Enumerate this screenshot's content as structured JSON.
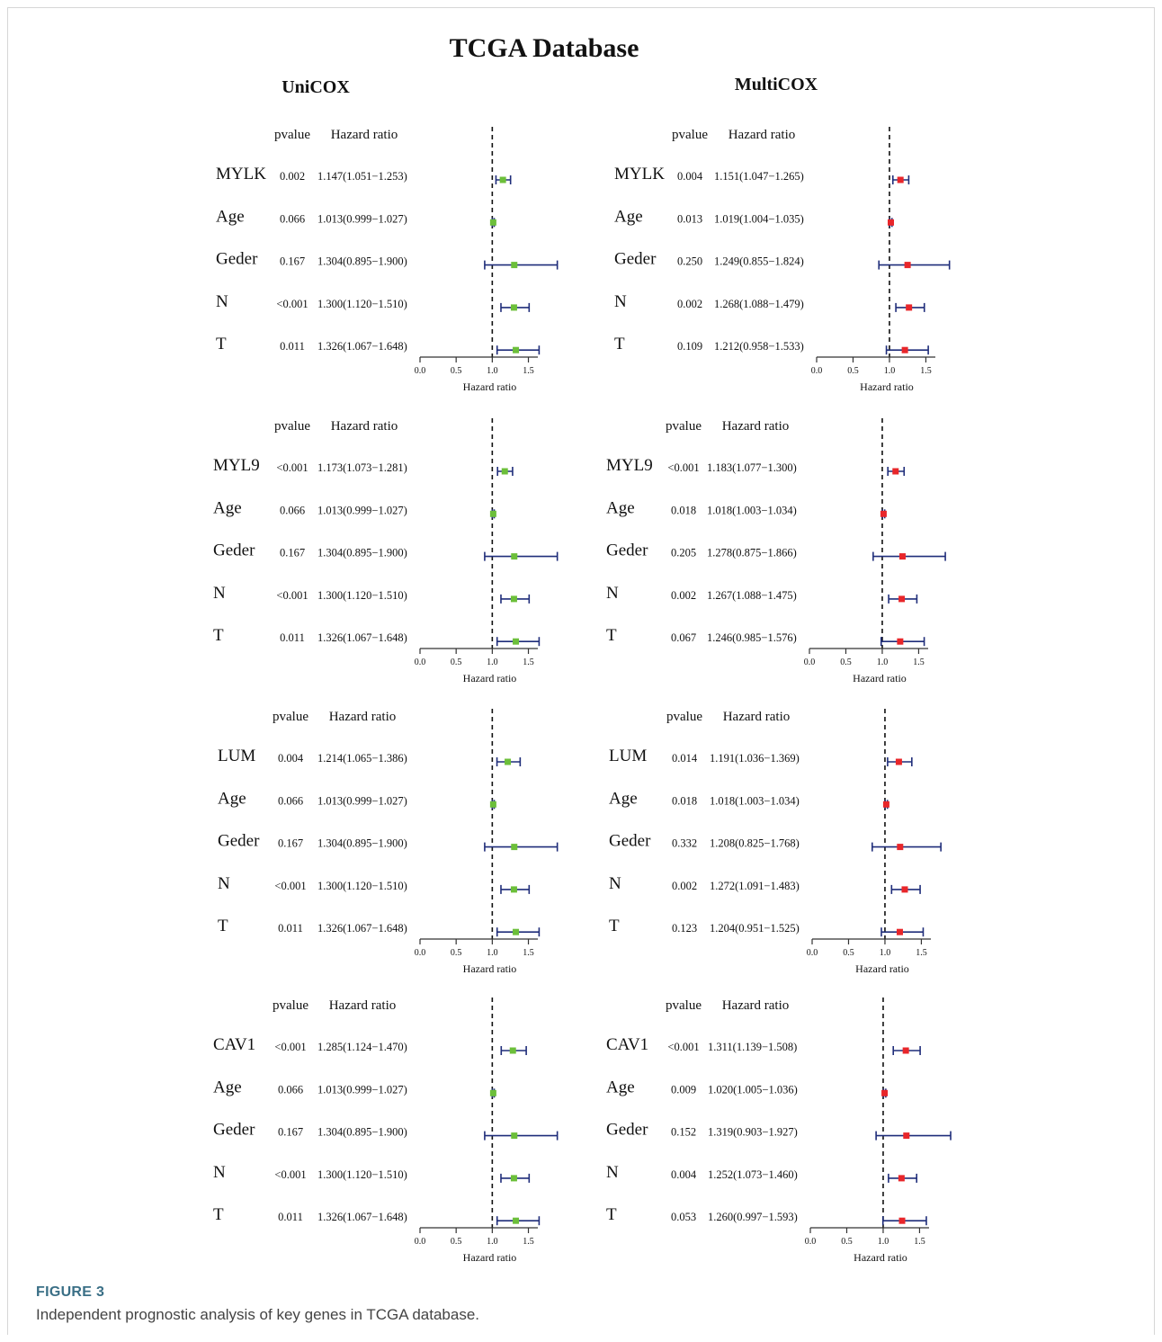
{
  "figure": {
    "label": "FIGURE 3",
    "caption": "Independent prognostic analysis of key genes in TCGA database."
  },
  "colors": {
    "unicox_marker": "#6cbf3a",
    "multicox_marker": "#e8262a",
    "ci_line": "#1f2d7a",
    "axis": "#333333",
    "text": "#111111"
  },
  "chart_data": {
    "type": "forest",
    "title": "TCGA Database",
    "columns": [
      "UniCOX",
      "MultiCOX"
    ],
    "header_pvalue": "pvalue",
    "header_hr": "Hazard ratio",
    "xlabel": "Hazard ratio",
    "xticks": [
      "0.0",
      "0.5",
      "1.0",
      "1.5"
    ],
    "xlim": [
      0,
      1.5
    ],
    "reference_line": 1.0,
    "panels": [
      {
        "column": "UniCOX",
        "rows": [
          {
            "label": "MYLK",
            "pvalue": "0.002",
            "hr_text": "1.147(1.051−1.253)",
            "hr": 1.147,
            "lo": 1.051,
            "hi": 1.253
          },
          {
            "label": "Age",
            "pvalue": "0.066",
            "hr_text": "1.013(0.999−1.027)",
            "hr": 1.013,
            "lo": 0.999,
            "hi": 1.027
          },
          {
            "label": "Geder",
            "pvalue": "0.167",
            "hr_text": "1.304(0.895−1.900)",
            "hr": 1.304,
            "lo": 0.895,
            "hi": 1.9
          },
          {
            "label": "N",
            "pvalue": "<0.001",
            "hr_text": "1.300(1.120−1.510)",
            "hr": 1.3,
            "lo": 1.12,
            "hi": 1.51
          },
          {
            "label": "T",
            "pvalue": "0.011",
            "hr_text": "1.326(1.067−1.648)",
            "hr": 1.326,
            "lo": 1.067,
            "hi": 1.648
          }
        ]
      },
      {
        "column": "MultiCOX",
        "rows": [
          {
            "label": "MYLK",
            "pvalue": "0.004",
            "hr_text": "1.151(1.047−1.265)",
            "hr": 1.151,
            "lo": 1.047,
            "hi": 1.265
          },
          {
            "label": "Age",
            "pvalue": "0.013",
            "hr_text": "1.019(1.004−1.035)",
            "hr": 1.019,
            "lo": 1.004,
            "hi": 1.035
          },
          {
            "label": "Geder",
            "pvalue": "0.250",
            "hr_text": "1.249(0.855−1.824)",
            "hr": 1.249,
            "lo": 0.855,
            "hi": 1.824
          },
          {
            "label": "N",
            "pvalue": "0.002",
            "hr_text": "1.268(1.088−1.479)",
            "hr": 1.268,
            "lo": 1.088,
            "hi": 1.479
          },
          {
            "label": "T",
            "pvalue": "0.109",
            "hr_text": "1.212(0.958−1.533)",
            "hr": 1.212,
            "lo": 0.958,
            "hi": 1.533
          }
        ]
      },
      {
        "column": "UniCOX",
        "rows": [
          {
            "label": "MYL9",
            "pvalue": "<0.001",
            "hr_text": "1.173(1.073−1.281)",
            "hr": 1.173,
            "lo": 1.073,
            "hi": 1.281
          },
          {
            "label": "Age",
            "pvalue": "0.066",
            "hr_text": "1.013(0.999−1.027)",
            "hr": 1.013,
            "lo": 0.999,
            "hi": 1.027
          },
          {
            "label": "Geder",
            "pvalue": "0.167",
            "hr_text": "1.304(0.895−1.900)",
            "hr": 1.304,
            "lo": 0.895,
            "hi": 1.9
          },
          {
            "label": "N",
            "pvalue": "<0.001",
            "hr_text": "1.300(1.120−1.510)",
            "hr": 1.3,
            "lo": 1.12,
            "hi": 1.51
          },
          {
            "label": "T",
            "pvalue": "0.011",
            "hr_text": "1.326(1.067−1.648)",
            "hr": 1.326,
            "lo": 1.067,
            "hi": 1.648
          }
        ]
      },
      {
        "column": "MultiCOX",
        "rows": [
          {
            "label": "MYL9",
            "pvalue": "<0.001",
            "hr_text": "1.183(1.077−1.300)",
            "hr": 1.183,
            "lo": 1.077,
            "hi": 1.3
          },
          {
            "label": "Age",
            "pvalue": "0.018",
            "hr_text": "1.018(1.003−1.034)",
            "hr": 1.018,
            "lo": 1.003,
            "hi": 1.034
          },
          {
            "label": "Geder",
            "pvalue": "0.205",
            "hr_text": "1.278(0.875−1.866)",
            "hr": 1.278,
            "lo": 0.875,
            "hi": 1.866
          },
          {
            "label": "N",
            "pvalue": "0.002",
            "hr_text": "1.267(1.088−1.475)",
            "hr": 1.267,
            "lo": 1.088,
            "hi": 1.475
          },
          {
            "label": "T",
            "pvalue": "0.067",
            "hr_text": "1.246(0.985−1.576)",
            "hr": 1.246,
            "lo": 0.985,
            "hi": 1.576
          }
        ]
      },
      {
        "column": "UniCOX",
        "rows": [
          {
            "label": "LUM",
            "pvalue": "0.004",
            "hr_text": "1.214(1.065−1.386)",
            "hr": 1.214,
            "lo": 1.065,
            "hi": 1.386
          },
          {
            "label": "Age",
            "pvalue": "0.066",
            "hr_text": "1.013(0.999−1.027)",
            "hr": 1.013,
            "lo": 0.999,
            "hi": 1.027
          },
          {
            "label": "Geder",
            "pvalue": "0.167",
            "hr_text": "1.304(0.895−1.900)",
            "hr": 1.304,
            "lo": 0.895,
            "hi": 1.9
          },
          {
            "label": "N",
            "pvalue": "<0.001",
            "hr_text": "1.300(1.120−1.510)",
            "hr": 1.3,
            "lo": 1.12,
            "hi": 1.51
          },
          {
            "label": "T",
            "pvalue": "0.011",
            "hr_text": "1.326(1.067−1.648)",
            "hr": 1.326,
            "lo": 1.067,
            "hi": 1.648
          }
        ]
      },
      {
        "column": "MultiCOX",
        "rows": [
          {
            "label": "LUM",
            "pvalue": "0.014",
            "hr_text": "1.191(1.036−1.369)",
            "hr": 1.191,
            "lo": 1.036,
            "hi": 1.369
          },
          {
            "label": "Age",
            "pvalue": "0.018",
            "hr_text": "1.018(1.003−1.034)",
            "hr": 1.018,
            "lo": 1.003,
            "hi": 1.034
          },
          {
            "label": "Geder",
            "pvalue": "0.332",
            "hr_text": "1.208(0.825−1.768)",
            "hr": 1.208,
            "lo": 0.825,
            "hi": 1.768
          },
          {
            "label": "N",
            "pvalue": "0.002",
            "hr_text": "1.272(1.091−1.483)",
            "hr": 1.272,
            "lo": 1.091,
            "hi": 1.483
          },
          {
            "label": "T",
            "pvalue": "0.123",
            "hr_text": "1.204(0.951−1.525)",
            "hr": 1.204,
            "lo": 0.951,
            "hi": 1.525
          }
        ]
      },
      {
        "column": "UniCOX",
        "rows": [
          {
            "label": "CAV1",
            "pvalue": "<0.001",
            "hr_text": "1.285(1.124−1.470)",
            "hr": 1.285,
            "lo": 1.124,
            "hi": 1.47
          },
          {
            "label": "Age",
            "pvalue": "0.066",
            "hr_text": "1.013(0.999−1.027)",
            "hr": 1.013,
            "lo": 0.999,
            "hi": 1.027
          },
          {
            "label": "Geder",
            "pvalue": "0.167",
            "hr_text": "1.304(0.895−1.900)",
            "hr": 1.304,
            "lo": 0.895,
            "hi": 1.9
          },
          {
            "label": "N",
            "pvalue": "<0.001",
            "hr_text": "1.300(1.120−1.510)",
            "hr": 1.3,
            "lo": 1.12,
            "hi": 1.51
          },
          {
            "label": "T",
            "pvalue": "0.011",
            "hr_text": "1.326(1.067−1.648)",
            "hr": 1.326,
            "lo": 1.067,
            "hi": 1.648
          }
        ]
      },
      {
        "column": "MultiCOX",
        "rows": [
          {
            "label": "CAV1",
            "pvalue": "<0.001",
            "hr_text": "1.311(1.139−1.508)",
            "hr": 1.311,
            "lo": 1.139,
            "hi": 1.508
          },
          {
            "label": "Age",
            "pvalue": "0.009",
            "hr_text": "1.020(1.005−1.036)",
            "hr": 1.02,
            "lo": 1.005,
            "hi": 1.036
          },
          {
            "label": "Geder",
            "pvalue": "0.152",
            "hr_text": "1.319(0.903−1.927)",
            "hr": 1.319,
            "lo": 0.903,
            "hi": 1.927
          },
          {
            "label": "N",
            "pvalue": "0.004",
            "hr_text": "1.252(1.073−1.460)",
            "hr": 1.252,
            "lo": 1.073,
            "hi": 1.46
          },
          {
            "label": "T",
            "pvalue": "0.053",
            "hr_text": "1.260(0.997−1.593)",
            "hr": 1.26,
            "lo": 0.997,
            "hi": 1.593
          }
        ]
      }
    ]
  }
}
